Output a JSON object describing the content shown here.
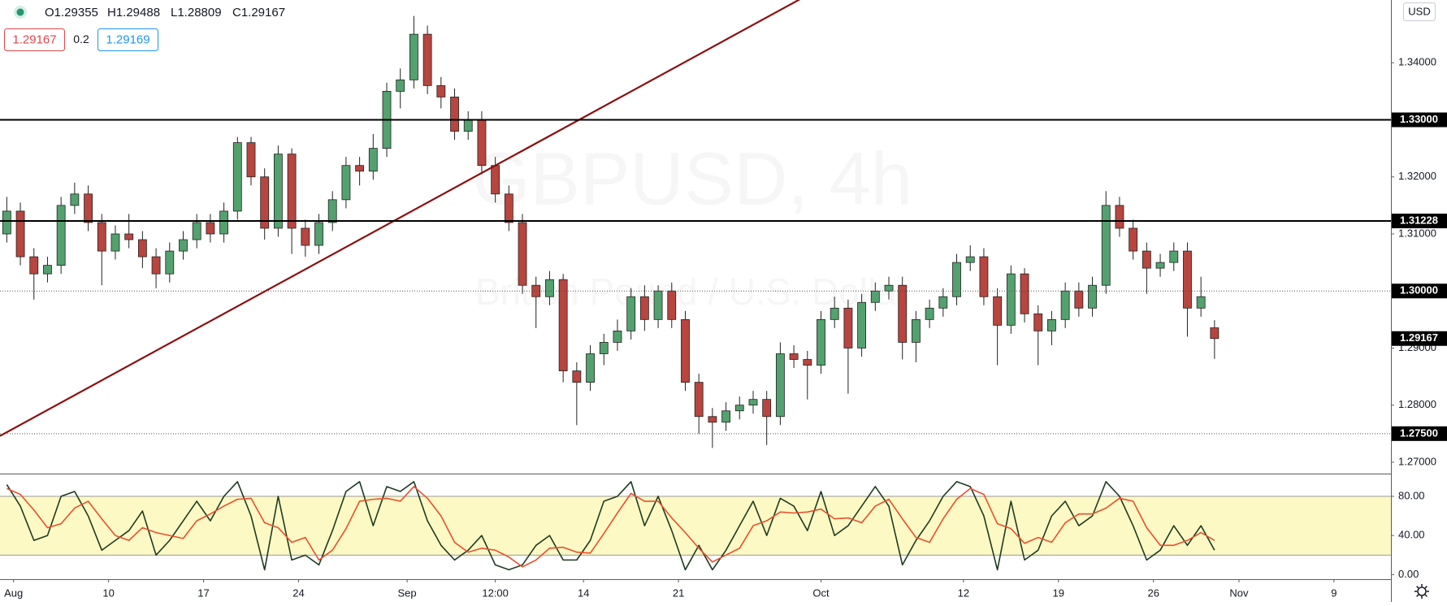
{
  "chart_data": [
    {
      "type": "candlestick",
      "title": "GBPUSD, 4h",
      "subtitle": "British Pound / U.S. Dollar",
      "legend_values": [
        "O1.29355",
        "H1.29488",
        "L1.28809",
        "C1.29167"
      ],
      "currency": "USD",
      "x": [
        -0.5,
        0.5,
        1.5,
        2.5,
        3.5,
        4.5,
        5.5,
        6.5,
        7.5,
        8.5,
        9.5,
        10.5,
        11.5,
        12.5,
        13.5,
        14.5,
        15.5,
        16.5,
        17.5,
        18.5,
        19.5,
        20.5,
        21.5,
        22.5,
        23.5,
        24.5,
        25.5,
        26.5,
        27.5,
        28.5,
        29.5,
        30.5,
        31.5,
        32.5,
        33.5,
        34.5,
        35.5,
        36.5,
        37.5,
        38.5,
        39.5,
        40.5,
        41.5,
        42.5,
        43.5,
        44.5,
        45.5,
        46.5,
        47.5,
        48.5,
        49.5,
        50.5,
        51.5,
        52.5,
        53.5,
        54.5,
        55.5,
        56.5,
        57.5,
        58.5,
        59.5,
        60.5,
        61.5,
        62.5,
        63.5,
        64.5,
        65.5,
        66.5,
        67.5,
        68.5,
        69.5,
        70.5,
        71.5,
        72.5,
        73.5,
        74.5,
        75.5,
        76.5,
        77.5,
        78.5,
        79.5,
        80.5,
        81.5,
        82.5,
        83.5,
        84.5,
        85.5,
        86.5,
        87.5,
        88.5
      ],
      "open": [
        1.31,
        1.314,
        1.306,
        1.303,
        1.3045,
        1.315,
        1.317,
        1.312,
        1.307,
        1.31,
        1.309,
        1.306,
        1.303,
        1.307,
        1.309,
        1.312,
        1.31,
        1.314,
        1.326,
        1.32,
        1.311,
        1.324,
        1.311,
        1.308,
        1.312,
        1.316,
        1.322,
        1.321,
        1.325,
        1.335,
        1.337,
        1.345,
        1.336,
        1.334,
        1.328,
        1.33,
        1.322,
        1.317,
        1.312,
        1.301,
        1.299,
        1.302,
        1.286,
        1.284,
        1.289,
        1.291,
        1.293,
        1.299,
        1.295,
        1.3,
        1.295,
        1.284,
        1.278,
        1.277,
        1.279,
        1.28,
        1.281,
        1.278,
        1.289,
        1.288,
        1.287,
        1.295,
        1.297,
        1.29,
        1.298,
        1.3,
        1.301,
        1.291,
        1.295,
        1.297,
        1.299,
        1.305,
        1.306,
        1.299,
        1.294,
        1.303,
        1.296,
        1.293,
        1.295,
        1.3,
        1.297,
        1.301,
        1.315,
        1.311,
        1.307,
        1.304,
        1.305,
        1.307,
        1.297,
        1.29355
      ],
      "high": [
        1.3165,
        1.3155,
        1.3075,
        1.306,
        1.3165,
        1.319,
        1.3185,
        1.3135,
        1.3115,
        1.3135,
        1.3105,
        1.3075,
        1.3085,
        1.3105,
        1.3135,
        1.3135,
        1.3155,
        1.327,
        1.327,
        1.3215,
        1.3255,
        1.325,
        1.3125,
        1.3135,
        1.3175,
        1.3235,
        1.3235,
        1.3275,
        1.3365,
        1.339,
        1.3482,
        1.3465,
        1.3375,
        1.3355,
        1.3315,
        1.3315,
        1.3235,
        1.3185,
        1.3135,
        1.3025,
        1.3035,
        1.303,
        1.2875,
        1.2905,
        1.2925,
        1.295,
        1.3005,
        1.301,
        1.301,
        1.3015,
        1.2965,
        1.2855,
        1.2795,
        1.2805,
        1.2815,
        1.2825,
        1.2825,
        1.291,
        1.2905,
        1.2895,
        1.2965,
        1.299,
        1.2985,
        1.2995,
        1.3015,
        1.3025,
        1.3025,
        1.2965,
        1.2985,
        1.3005,
        1.3065,
        1.308,
        1.3075,
        1.3005,
        1.3045,
        1.304,
        1.2975,
        1.2965,
        1.3015,
        1.3015,
        1.3025,
        1.3175,
        1.3165,
        1.3125,
        1.3085,
        1.3065,
        1.3085,
        1.3085,
        1.3025,
        1.29488
      ],
      "low": [
        1.3085,
        1.3045,
        1.2985,
        1.3015,
        1.303,
        1.3135,
        1.3105,
        1.301,
        1.3055,
        1.3075,
        1.304,
        1.3005,
        1.3015,
        1.3055,
        1.3075,
        1.3085,
        1.3085,
        1.3125,
        1.3185,
        1.309,
        1.3095,
        1.3065,
        1.306,
        1.3065,
        1.3105,
        1.3145,
        1.3185,
        1.3195,
        1.3235,
        1.332,
        1.3355,
        1.3345,
        1.332,
        1.3265,
        1.3265,
        1.3205,
        1.3155,
        1.3105,
        1.2995,
        1.2935,
        1.2975,
        1.284,
        1.2765,
        1.2825,
        1.287,
        1.2895,
        1.2915,
        1.293,
        1.2935,
        1.2935,
        1.2825,
        1.275,
        1.2725,
        1.2755,
        1.2775,
        1.2785,
        1.273,
        1.2765,
        1.2865,
        1.281,
        1.2855,
        1.2935,
        1.282,
        1.2885,
        1.2965,
        1.2985,
        1.288,
        1.2875,
        1.2935,
        1.2955,
        1.2975,
        1.3035,
        1.2975,
        1.287,
        1.2925,
        1.2945,
        1.287,
        1.2905,
        1.2935,
        1.2955,
        1.2955,
        1.2995,
        1.3095,
        1.3055,
        1.2995,
        1.3025,
        1.3035,
        1.292,
        1.2955,
        1.28809
      ],
      "close": [
        1.314,
        1.306,
        1.303,
        1.3045,
        1.315,
        1.317,
        1.312,
        1.307,
        1.31,
        1.309,
        1.306,
        1.303,
        1.307,
        1.309,
        1.312,
        1.31,
        1.314,
        1.326,
        1.32,
        1.311,
        1.324,
        1.311,
        1.308,
        1.312,
        1.316,
        1.322,
        1.321,
        1.325,
        1.335,
        1.337,
        1.345,
        1.336,
        1.334,
        1.328,
        1.33,
        1.322,
        1.317,
        1.312,
        1.301,
        1.299,
        1.302,
        1.286,
        1.284,
        1.289,
        1.291,
        1.293,
        1.299,
        1.295,
        1.3,
        1.295,
        1.284,
        1.278,
        1.277,
        1.279,
        1.28,
        1.281,
        1.278,
        1.289,
        1.288,
        1.287,
        1.295,
        1.297,
        1.29,
        1.298,
        1.3,
        1.301,
        1.291,
        1.295,
        1.297,
        1.299,
        1.305,
        1.306,
        1.299,
        1.294,
        1.303,
        1.296,
        1.293,
        1.295,
        1.3,
        1.297,
        1.301,
        1.315,
        1.311,
        1.307,
        1.304,
        1.305,
        1.307,
        1.297,
        1.299,
        1.29167
      ],
      "up_color": "#53a16f",
      "down_color": "#b8453f",
      "xlim": [
        -1,
        101.5
      ],
      "xticks": [
        {
          "value": 0,
          "label": "Aug"
        },
        {
          "value": 7,
          "label": "10"
        },
        {
          "value": 14,
          "label": "17"
        },
        {
          "value": 21,
          "label": "24"
        },
        {
          "value": 29,
          "label": "Sep"
        },
        {
          "value": 35.5,
          "label": "12:00"
        },
        {
          "value": 42,
          "label": "14"
        },
        {
          "value": 49,
          "label": "21"
        },
        {
          "value": 59.5,
          "label": "Oct"
        },
        {
          "value": 70,
          "label": "12"
        },
        {
          "value": 77,
          "label": "19"
        },
        {
          "value": 84,
          "label": "26"
        },
        {
          "value": 90.3,
          "label": "Nov"
        },
        {
          "value": 97.3,
          "label": "9"
        }
      ],
      "ylim": [
        1.268,
        1.351
      ],
      "yticks": [
        {
          "value": 1.27,
          "label": "1.27000"
        },
        {
          "value": 1.28,
          "label": "1.28000"
        },
        {
          "value": 1.29,
          "label": "1.29000"
        },
        {
          "value": 1.31,
          "label": "1.31000"
        },
        {
          "value": 1.32,
          "label": "1.32000"
        },
        {
          "value": 1.34,
          "label": "1.34000"
        }
      ],
      "grid": false,
      "levels": [
        {
          "value": 1.33,
          "label": "1.33000",
          "style": "solid"
        },
        {
          "value": 1.31228,
          "label": "1.31228",
          "style": "solid"
        },
        {
          "value": 1.3,
          "label": "1.30000",
          "style": "dotted"
        },
        {
          "value": 1.275,
          "label": "1.27500",
          "style": "dotted"
        }
      ],
      "last_price": {
        "value": 1.29167,
        "label": "1.29167"
      },
      "trendline": {
        "x": [
          -1,
          58
        ],
        "y": [
          1.2746,
          1.3512
        ],
        "color": "#8b1010"
      }
    },
    {
      "type": "line",
      "x": [
        -0.5,
        0.5,
        1.5,
        2.5,
        3.5,
        4.5,
        5.5,
        6.5,
        7.5,
        8.5,
        9.5,
        10.5,
        11.5,
        12.5,
        13.5,
        14.5,
        15.5,
        16.5,
        17.5,
        18.5,
        19.5,
        20.5,
        21.5,
        22.5,
        23.5,
        24.5,
        25.5,
        26.5,
        27.5,
        28.5,
        29.5,
        30.5,
        31.5,
        32.5,
        33.5,
        34.5,
        35.5,
        36.5,
        37.5,
        38.5,
        39.5,
        40.5,
        41.5,
        42.5,
        43.5,
        44.5,
        45.5,
        46.5,
        47.5,
        48.5,
        49.5,
        50.5,
        51.5,
        52.5,
        53.5,
        54.5,
        55.5,
        56.5,
        57.5,
        58.5,
        59.5,
        60.5,
        61.5,
        62.5,
        63.5,
        64.5,
        65.5,
        66.5,
        67.5,
        68.5,
        69.5,
        70.5,
        71.5,
        72.5,
        73.5,
        74.5,
        75.5,
        76.5,
        77.5,
        78.5,
        79.5,
        80.5,
        81.5,
        82.5,
        83.5,
        84.5,
        85.5,
        86.5,
        87.5,
        88.5
      ],
      "series": [
        {
          "color": "#1f3a22",
          "values": [
            92,
            70,
            35,
            40,
            80,
            85,
            60,
            25,
            35,
            45,
            65,
            20,
            35,
            55,
            75,
            55,
            80,
            95,
            60,
            5,
            80,
            15,
            20,
            10,
            45,
            85,
            95,
            50,
            90,
            85,
            95,
            55,
            30,
            15,
            25,
            40,
            10,
            5,
            10,
            30,
            40,
            15,
            15,
            35,
            75,
            80,
            95,
            50,
            80,
            45,
            5,
            30,
            5,
            25,
            50,
            75,
            40,
            78,
            70,
            45,
            85,
            40,
            50,
            70,
            90,
            70,
            10,
            35,
            55,
            80,
            95,
            90,
            60,
            5,
            75,
            15,
            25,
            60,
            75,
            50,
            60,
            95,
            80,
            50,
            15,
            25,
            50,
            30,
            50,
            25
          ]
        },
        {
          "color": "#e8502e",
          "values": [
            88,
            82,
            66,
            48,
            52,
            68,
            75,
            57,
            40,
            35,
            48,
            43,
            40,
            37,
            55,
            62,
            70,
            77,
            78,
            53,
            48,
            33,
            38,
            15,
            25,
            47,
            75,
            77,
            78,
            75,
            90,
            78,
            60,
            33,
            23,
            27,
            25,
            18,
            8,
            15,
            27,
            28,
            23,
            22,
            42,
            63,
            83,
            75,
            75,
            58,
            43,
            27,
            13,
            20,
            27,
            50,
            55,
            64,
            63,
            64,
            67,
            57,
            58,
            53,
            70,
            77,
            57,
            38,
            33,
            57,
            77,
            88,
            82,
            52,
            47,
            32,
            38,
            33,
            53,
            62,
            62,
            68,
            78,
            75,
            48,
            30,
            30,
            35,
            43,
            35
          ]
        }
      ],
      "ylim": [
        -4.6,
        102.4
      ],
      "yticks": [
        {
          "value": 80,
          "label": "80.00"
        },
        {
          "value": 40,
          "label": "40.00"
        },
        {
          "value": 0,
          "label": "0.00"
        }
      ],
      "band": [
        20,
        80
      ],
      "band_color": "#fdf9c4"
    }
  ],
  "order_panel": {
    "sell": "1.29167",
    "spread": "0.2",
    "buy": "1.29169"
  }
}
